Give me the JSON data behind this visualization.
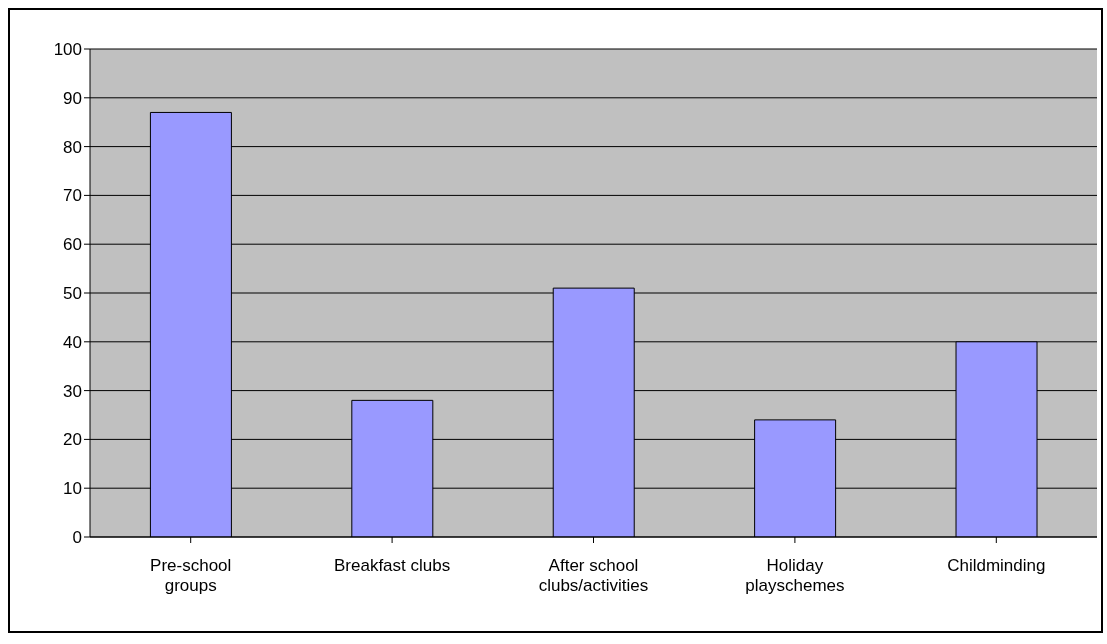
{
  "chart_data": {
    "type": "bar",
    "categories": [
      "Pre-school groups",
      "Breakfast clubs",
      "After school clubs/activities",
      "Holiday playschemes",
      "Childminding"
    ],
    "values": [
      87,
      28,
      51,
      24,
      40
    ],
    "color": "#9999ff",
    "ylim": [
      0,
      100
    ],
    "yticks": [
      0,
      10,
      20,
      30,
      40,
      50,
      60,
      70,
      80,
      90,
      100
    ],
    "grid": "y"
  }
}
